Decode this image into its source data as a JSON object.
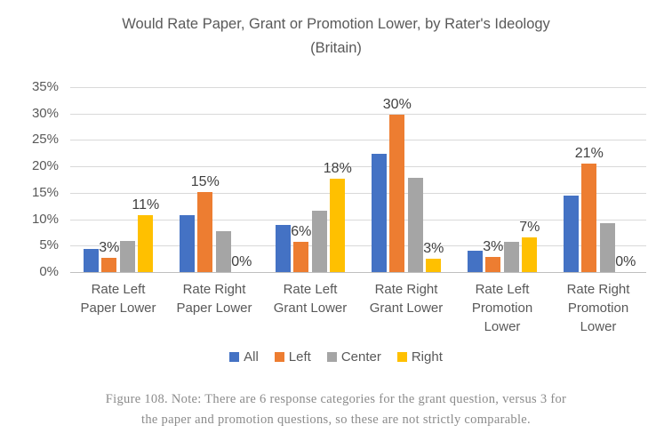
{
  "chart_data": {
    "type": "bar",
    "title": "Would Rate Paper, Grant or Promotion Lower, by Rater's Ideology (Britain)",
    "title_lines": [
      "Would Rate Paper, Grant or Promotion Lower, by Rater's Ideology",
      "(Britain)"
    ],
    "categories": [
      "Rate Left Paper Lower",
      "Rate Right Paper Lower",
      "Rate Left Grant Lower",
      "Rate Right Grant Lower",
      "Rate Left Promotion Lower",
      "Rate Right Promotion Lower"
    ],
    "category_label_lines": [
      [
        "Rate Left",
        "Paper Lower"
      ],
      [
        "Rate Right",
        "Paper Lower"
      ],
      [
        "Rate Left",
        "Grant Lower"
      ],
      [
        "Rate Right",
        "Grant Lower"
      ],
      [
        "Rate Left",
        "Promotion",
        "Lower"
      ],
      [
        "Rate Right",
        "Promotion",
        "Lower"
      ]
    ],
    "series": [
      {
        "name": "All",
        "color": "#4472C4",
        "values": [
          4.4,
          10.7,
          8.9,
          22.4,
          4.0,
          14.4
        ]
      },
      {
        "name": "Left",
        "color": "#ED7D31",
        "values": [
          2.7,
          15.1,
          5.7,
          29.8,
          2.8,
          20.6
        ],
        "labels": [
          "3%",
          "15%",
          "6%",
          "30%",
          "3%",
          "21%"
        ]
      },
      {
        "name": "Center",
        "color": "#A5A5A5",
        "values": [
          5.9,
          7.8,
          11.7,
          17.9,
          5.8,
          9.2
        ]
      },
      {
        "name": "Right",
        "color": "#FFC000",
        "values": [
          10.8,
          0,
          17.7,
          2.6,
          6.6,
          0
        ],
        "labels": [
          "11%",
          "0%",
          "18%",
          "3%",
          "7%",
          "0%"
        ]
      }
    ],
    "ylim": [
      0,
      35
    ],
    "ytick_step": 5,
    "ytick_labels": [
      "0%",
      "5%",
      "10%",
      "15%",
      "20%",
      "25%",
      "30%",
      "35%"
    ],
    "grid": true,
    "legend_position": "bottom",
    "legend_labels": [
      "All",
      "Left",
      "Center",
      "Right"
    ]
  },
  "caption": "Figure 108. Note: There are 6 response categories for the grant question, versus 3 for the paper and promotion questions, so these are not strictly comparable.",
  "caption_lines": [
    "Figure 108. Note: There are 6 response categories for the grant question, versus 3 for",
    "the paper and promotion questions, so these are not strictly comparable."
  ]
}
